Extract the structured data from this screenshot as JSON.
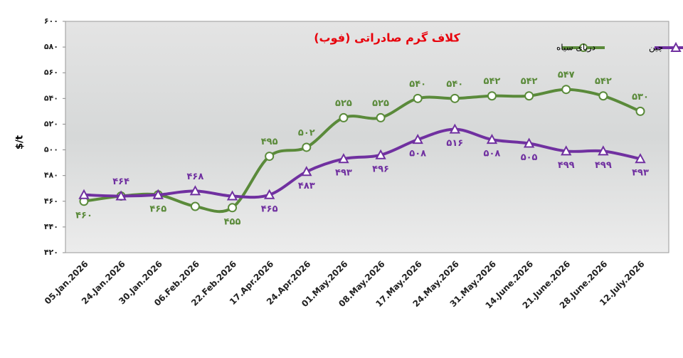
{
  "chart_data": {
    "type": "line",
    "title": "کلاف گرم صادراتی (فوب)",
    "y_label": "$/t",
    "categories": [
      "05.Jan.2026",
      "24.Jan.2026",
      "30.Jan.2026",
      "06.Feb.2026",
      "22.Feb.2026",
      "17.Apr.2026",
      "24.Apr.2026",
      "01.May.2026",
      "08.May.2026",
      "17.May.2026",
      "24.May.2026",
      "31.May.2026",
      "14.June.2026",
      "21.June.2026",
      "28.June.2026",
      "12.July.2026"
    ],
    "series": [
      {
        "name": "دریای سیاه",
        "color": "#5a8a3a",
        "marker": "circle",
        "values": [
          460,
          464,
          465,
          456,
          455,
          495,
          502,
          525,
          525,
          540,
          540,
          542,
          542,
          547,
          542,
          530
        ],
        "value_labels": [
          "۴۶۰",
          null,
          "۴۶۵",
          null,
          "۴۵۵",
          "۴۹۵",
          "۵۰۲",
          "۵۲۵",
          "۵۲۵",
          "۵۴۰",
          "۵۴۰",
          "۵۴۲",
          "۵۴۲",
          "۵۴۷",
          "۵۴۲",
          "۵۳۰"
        ]
      },
      {
        "name": "چین",
        "color": "#7030a0",
        "marker": "triangle",
        "values": [
          465,
          464,
          465,
          468,
          464,
          465,
          483,
          493,
          496,
          508,
          516,
          508,
          505,
          499,
          499,
          493
        ],
        "value_labels": [
          null,
          "۴۶۴",
          null,
          "۴۶۸",
          null,
          "۴۶۵",
          "۴۸۳",
          "۴۹۳",
          "۴۹۶",
          "۵۰۸",
          "۵۱۶",
          "۵۰۸",
          "۵۰۵",
          "۴۹۹",
          "۴۹۹",
          "۴۹۳"
        ]
      }
    ],
    "ylim": [
      420,
      600
    ],
    "yticks": [
      {
        "value": 420,
        "label": "۴۲۰"
      },
      {
        "value": 440,
        "label": "۴۴۰"
      },
      {
        "value": 460,
        "label": "۴۶۰"
      },
      {
        "value": 480,
        "label": "۴۸۰"
      },
      {
        "value": 500,
        "label": "۵۰۰"
      },
      {
        "value": 520,
        "label": "۵۲۰"
      },
      {
        "value": 540,
        "label": "۵۴۰"
      },
      {
        "value": 560,
        "label": "۵۶۰"
      },
      {
        "value": 580,
        "label": "۵۸۰"
      },
      {
        "value": 600,
        "label": "۶۰۰"
      }
    ]
  }
}
